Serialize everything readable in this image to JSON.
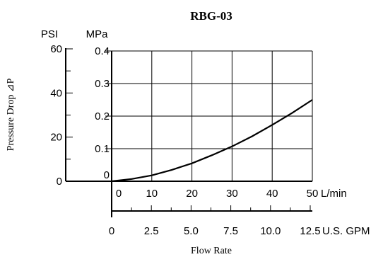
{
  "chart_data": {
    "type": "line",
    "title": "RBG-03",
    "xlabel": "Flow Rate",
    "ylabel": "Pressure Drop ⊿P",
    "x_units": [
      "L/min",
      "U.S. GPM"
    ],
    "y_units": [
      "PSI",
      "MPa"
    ],
    "xlim": [
      0,
      50
    ],
    "ylim": [
      0,
      0.4
    ],
    "x_ticks_lpm": [
      "0",
      "10",
      "20",
      "30",
      "40",
      "50"
    ],
    "x_ticks_gpm": [
      "0",
      "2.5",
      "5.0",
      "7.5",
      "10.0",
      "12.5"
    ],
    "y_ticks_mpa": [
      "0",
      "0.1",
      "0.2",
      "0.3",
      "0.4"
    ],
    "y_ticks_psi": [
      "0",
      "20",
      "40",
      "60"
    ],
    "grid": true,
    "series": [
      {
        "x": [
          0,
          5,
          10,
          15,
          20,
          25,
          30,
          35,
          40,
          45,
          50
        ],
        "y": [
          0,
          0.007,
          0.018,
          0.035,
          0.055,
          0.08,
          0.107,
          0.138,
          0.173,
          0.21,
          0.25
        ]
      }
    ]
  }
}
